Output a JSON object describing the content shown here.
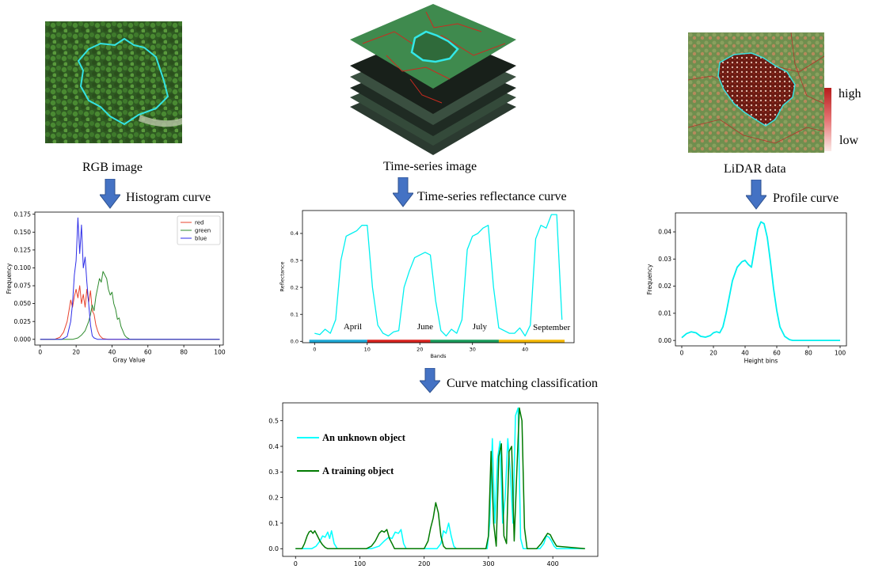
{
  "captions": {
    "rgb": "RGB image",
    "timeseries": "Time-series image",
    "lidar": "LiDAR data",
    "histogram_curve": "Histogram  curve",
    "ts_curve": "Time-series reflectance curve",
    "profile_curve": "Profile curve",
    "curve_matching": "Curve matching classification"
  },
  "lidar_legend": {
    "high": "high",
    "low": "low"
  },
  "colors": {
    "arrow": "#4472c4",
    "cyan": "#00ffff",
    "red_line": "#ff0000",
    "outline_cyan": "#00e5e5"
  },
  "chart_data": [
    {
      "id": "histogram",
      "type": "line",
      "xlabel": "Gray Value",
      "ylabel": "Frequency",
      "xlim": [
        -3,
        102
      ],
      "ylim": [
        -0.008,
        0.178
      ],
      "xticks": [
        0,
        20,
        40,
        60,
        80,
        100
      ],
      "yticks": [
        0.0,
        0.025,
        0.05,
        0.075,
        0.1,
        0.125,
        0.15,
        0.175
      ],
      "ytick_labels": [
        "0.000",
        "0.025",
        "0.050",
        "0.075",
        "0.100",
        "0.125",
        "0.150",
        "0.175"
      ],
      "legend": "top-right",
      "series": [
        {
          "name": "red",
          "color": "#e8432e",
          "x": [
            0,
            8,
            11,
            13,
            15,
            16,
            17,
            18,
            19,
            20,
            21,
            22,
            23,
            24,
            25,
            26,
            27,
            28,
            29,
            30,
            31,
            32,
            33,
            34,
            35,
            38,
            40,
            100
          ],
          "y": [
            0,
            0,
            0.003,
            0.01,
            0.025,
            0.04,
            0.055,
            0.045,
            0.06,
            0.07,
            0.058,
            0.075,
            0.05,
            0.063,
            0.045,
            0.07,
            0.052,
            0.068,
            0.04,
            0.035,
            0.02,
            0.012,
            0.006,
            0.003,
            0.001,
            0,
            0,
            0
          ]
        },
        {
          "name": "green",
          "color": "#2e8b2e",
          "x": [
            0,
            18,
            21,
            23,
            25,
            27,
            28,
            29,
            30,
            31,
            32,
            33,
            34,
            35,
            36,
            37,
            38,
            39,
            40,
            41,
            42,
            43,
            44,
            45,
            46,
            47,
            48,
            50,
            100
          ],
          "y": [
            0,
            0,
            0.002,
            0.006,
            0.012,
            0.025,
            0.035,
            0.048,
            0.04,
            0.06,
            0.072,
            0.085,
            0.08,
            0.095,
            0.09,
            0.085,
            0.07,
            0.062,
            0.066,
            0.05,
            0.042,
            0.028,
            0.03,
            0.018,
            0.012,
            0.006,
            0.003,
            0,
            0
          ]
        },
        {
          "name": "blue",
          "color": "#2e2ee8",
          "x": [
            0,
            12,
            15,
            17,
            18,
            19,
            20,
            21,
            22,
            23,
            24,
            25,
            26,
            27,
            28,
            29,
            30,
            32,
            100
          ],
          "y": [
            0,
            0,
            0.004,
            0.025,
            0.05,
            0.09,
            0.11,
            0.17,
            0.12,
            0.16,
            0.1,
            0.115,
            0.08,
            0.05,
            0.02,
            0.005,
            0.002,
            0,
            0
          ]
        }
      ]
    },
    {
      "id": "reflectance",
      "type": "line",
      "xlabel": "Bands",
      "ylabel": "Reflectance",
      "xlim": [
        -2.3,
        49.3
      ],
      "ylim": [
        -0.005,
        0.485
      ],
      "xticks": [
        0,
        10,
        20,
        30,
        40
      ],
      "yticks": [
        0.0,
        0.1,
        0.2,
        0.3,
        0.4
      ],
      "ytick_labels": [
        "0.0",
        "0.1",
        "0.2",
        "0.3",
        "0.4"
      ],
      "month_labels": [
        "April",
        "June",
        "July",
        "September"
      ],
      "month_bars": [
        {
          "from": -1,
          "to": 10,
          "color": "#1ea8d6"
        },
        {
          "from": 10,
          "to": 22,
          "color": "#d9231f"
        },
        {
          "from": 22,
          "to": 35,
          "color": "#1a9c5c"
        },
        {
          "from": 35,
          "to": 47.5,
          "color": "#f5b800"
        }
      ],
      "series": [
        {
          "name": "",
          "color": "#00f0f0",
          "x": [
            0,
            1,
            2,
            3,
            4,
            5,
            6,
            7,
            8,
            9,
            10,
            11,
            12,
            13,
            14,
            15,
            16,
            17,
            18,
            19,
            20,
            21,
            22,
            23,
            24,
            25,
            26,
            27,
            28,
            29,
            30,
            31,
            32,
            33,
            34,
            35,
            36,
            37,
            38,
            39,
            40,
            41,
            42,
            43,
            44,
            45,
            46,
            47
          ],
          "y": [
            0.03,
            0.025,
            0.045,
            0.03,
            0.08,
            0.3,
            0.39,
            0.4,
            0.41,
            0.43,
            0.43,
            0.2,
            0.06,
            0.03,
            0.02,
            0.035,
            0.04,
            0.2,
            0.26,
            0.31,
            0.32,
            0.33,
            0.32,
            0.15,
            0.04,
            0.02,
            0.045,
            0.03,
            0.08,
            0.34,
            0.39,
            0.4,
            0.42,
            0.43,
            0.2,
            0.05,
            0.04,
            0.03,
            0.03,
            0.05,
            0.02,
            0.06,
            0.38,
            0.43,
            0.42,
            0.47,
            0.47,
            0.08
          ]
        }
      ]
    },
    {
      "id": "profile",
      "type": "line",
      "xlabel": "Height bins",
      "ylabel": "Frequency",
      "xlim": [
        -4,
        104
      ],
      "ylim": [
        -0.002,
        0.047
      ],
      "xticks": [
        0,
        20,
        40,
        60,
        80,
        100
      ],
      "yticks": [
        0.0,
        0.01,
        0.02,
        0.03,
        0.04
      ],
      "ytick_labels": [
        "0.00",
        "0.01",
        "0.02",
        "0.03",
        "0.04"
      ],
      "series": [
        {
          "name": "",
          "color": "#00f0f0",
          "x": [
            0,
            3,
            6,
            9,
            12,
            15,
            18,
            20,
            22,
            24,
            26,
            28,
            30,
            32,
            35,
            38,
            40,
            42,
            44,
            46,
            48,
            50,
            52,
            54,
            56,
            58,
            60,
            62,
            65,
            68,
            70,
            75,
            80,
            100
          ],
          "y": [
            0.001,
            0.0025,
            0.0032,
            0.0028,
            0.0015,
            0.0012,
            0.0018,
            0.0028,
            0.0032,
            0.0028,
            0.005,
            0.01,
            0.016,
            0.022,
            0.027,
            0.029,
            0.0295,
            0.028,
            0.027,
            0.034,
            0.041,
            0.0437,
            0.043,
            0.038,
            0.029,
            0.019,
            0.011,
            0.005,
            0.0015,
            0.0003,
            0,
            0,
            0,
            0
          ]
        }
      ]
    },
    {
      "id": "matching",
      "type": "line",
      "xlim": [
        -20,
        470
      ],
      "ylim": [
        -0.03,
        0.57
      ],
      "xticks": [
        0,
        100,
        200,
        300,
        400
      ],
      "yticks": [
        0.0,
        0.1,
        0.2,
        0.3,
        0.4,
        0.5
      ],
      "ytick_labels": [
        "0.0",
        "0.1",
        "0.2",
        "0.3",
        "0.4",
        "0.5"
      ],
      "legend": "upper-left",
      "series": [
        {
          "name": "An unknown object",
          "color": "#00ffff",
          "x": [
            0,
            25,
            32,
            38,
            42,
            46,
            50,
            53,
            56,
            60,
            65,
            118,
            130,
            138,
            145,
            150,
            155,
            160,
            164,
            168,
            172,
            220,
            226,
            230,
            234,
            238,
            242,
            246,
            250,
            298,
            302,
            306,
            310,
            314,
            318,
            322,
            326,
            330,
            334,
            338,
            342,
            346,
            350,
            354,
            358,
            380,
            386,
            390,
            394,
            398,
            402,
            406,
            450
          ],
          "y": [
            0,
            0,
            0.01,
            0.03,
            0.05,
            0.045,
            0.065,
            0.04,
            0.07,
            0.02,
            0,
            0,
            0.01,
            0.03,
            0.045,
            0.04,
            0.065,
            0.06,
            0.075,
            0.02,
            0,
            0,
            0.02,
            0.07,
            0.06,
            0.1,
            0.05,
            0.01,
            0,
            0,
            0.1,
            0.43,
            0.1,
            0.35,
            0.42,
            0.1,
            0.2,
            0.43,
            0.3,
            0.1,
            0.52,
            0.55,
            0.04,
            0,
            0,
            0,
            0.02,
            0.05,
            0.045,
            0.03,
            0.01,
            0,
            0
          ]
        },
        {
          "name": "A training object",
          "color": "#007a00",
          "x": [
            0,
            10,
            14,
            18,
            21,
            24,
            27,
            30,
            34,
            38,
            42,
            46,
            50,
            110,
            118,
            124,
            130,
            134,
            138,
            142,
            146,
            150,
            154,
            200,
            206,
            210,
            214,
            218,
            222,
            226,
            230,
            234,
            240,
            296,
            300,
            304,
            308,
            312,
            316,
            320,
            324,
            328,
            332,
            336,
            340,
            344,
            348,
            352,
            356,
            360,
            375,
            382,
            388,
            392,
            396,
            400,
            406,
            450
          ],
          "y": [
            0,
            0,
            0.02,
            0.05,
            0.065,
            0.07,
            0.06,
            0.07,
            0.05,
            0.03,
            0.015,
            0.005,
            0,
            0,
            0.01,
            0.03,
            0.06,
            0.07,
            0.065,
            0.075,
            0.04,
            0.02,
            0,
            0,
            0.03,
            0.08,
            0.12,
            0.18,
            0.14,
            0.05,
            0.01,
            0,
            0,
            0,
            0.05,
            0.38,
            0.1,
            0.01,
            0.36,
            0.41,
            0.05,
            0.02,
            0.38,
            0.4,
            0.03,
            0.3,
            0.55,
            0.5,
            0.08,
            0,
            0,
            0.02,
            0.045,
            0.06,
            0.055,
            0.035,
            0.01,
            0
          ]
        }
      ]
    }
  ]
}
